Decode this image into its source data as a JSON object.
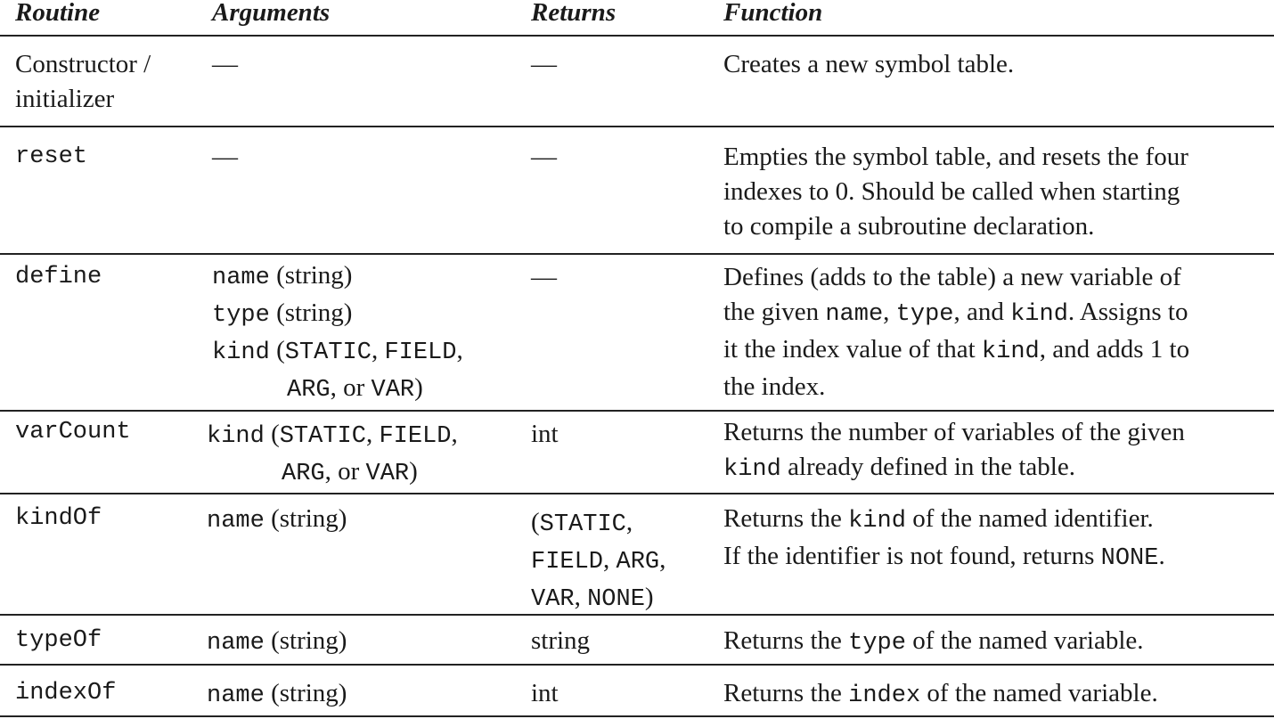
{
  "headers": {
    "routine": "Routine",
    "arguments": "Arguments",
    "returns": "Returns",
    "function": "Function"
  },
  "dash": "—",
  "rows": {
    "ctor": {
      "routine_1": "Constructor /",
      "routine_2": "initializer",
      "function": "Creates a new symbol table."
    },
    "reset": {
      "routine": "reset",
      "function_1": "Empties the symbol table, and resets the four",
      "function_2": "indexes to 0. Should be called when starting",
      "function_3": "to compile a subroutine declaration."
    },
    "define": {
      "routine": "define",
      "arg1_code": "name",
      "arg1_text": " (string)",
      "arg2_code": "type",
      "arg2_text": " (string)",
      "arg3_code": "kind",
      "arg3_t1": " (",
      "arg3_c2": "STATIC",
      "arg3_t2": ", ",
      "arg3_c3": "FIELD",
      "arg3_t3": ",",
      "arg4_c1": "ARG",
      "arg4_t1": ", or ",
      "arg4_c2": "VAR",
      "arg4_t2": ")",
      "fn1": "Defines (adds to the table) a new variable of",
      "fn2_t1": "the given ",
      "fn2_c1": "name",
      "fn2_t2": ", ",
      "fn2_c2": "type",
      "fn2_t3": ", and ",
      "fn2_c3": "kind",
      "fn2_t4": ". Assigns to",
      "fn3_t1": "it the index value of that ",
      "fn3_c1": "kind",
      "fn3_t2": ", and adds 1 to",
      "fn4": "the index."
    },
    "varcount": {
      "routine": "varCount",
      "arg1_code": "kind",
      "arg1_t1": " (",
      "arg1_c2": "STATIC",
      "arg1_t2": ", ",
      "arg1_c3": "FIELD",
      "arg1_t3": ",",
      "arg2_c1": "ARG",
      "arg2_t1": ", or ",
      "arg2_c2": "VAR",
      "arg2_t2": ")",
      "returns": "int",
      "fn1": "Returns the number of variables of the given",
      "fn2_c1": "kind",
      "fn2_t1": " already defined in the table."
    },
    "kindof": {
      "routine": "kindOf",
      "arg_code": "name",
      "arg_text": " (string)",
      "ret1_t1": "(",
      "ret1_c1": "STATIC",
      "ret1_t2": ",",
      "ret2_c1": "FIELD",
      "ret2_t1": ", ",
      "ret2_c2": "ARG",
      "ret2_t2": ",",
      "ret3_c1": "VAR",
      "ret3_t1": ", ",
      "ret3_c2": "NONE",
      "ret3_t2": ")",
      "fn1_t1": "Returns the ",
      "fn1_c1": "kind",
      "fn1_t2": " of the named identifier.",
      "fn2_t1": "If the identifier is not found, returns ",
      "fn2_c1": "NONE",
      "fn2_t2": "."
    },
    "typeof": {
      "routine": "typeOf",
      "arg_code": "name",
      "arg_text": " (string)",
      "returns": "string",
      "fn_t1": "Returns the ",
      "fn_c1": "type",
      "fn_t2": " of the named variable."
    },
    "indexof": {
      "routine": "indexOf",
      "arg_code": "name",
      "arg_text": " (string)",
      "returns": "int",
      "fn_t1": "Returns the ",
      "fn_c1": "index",
      "fn_t2": " of the named variable."
    }
  }
}
